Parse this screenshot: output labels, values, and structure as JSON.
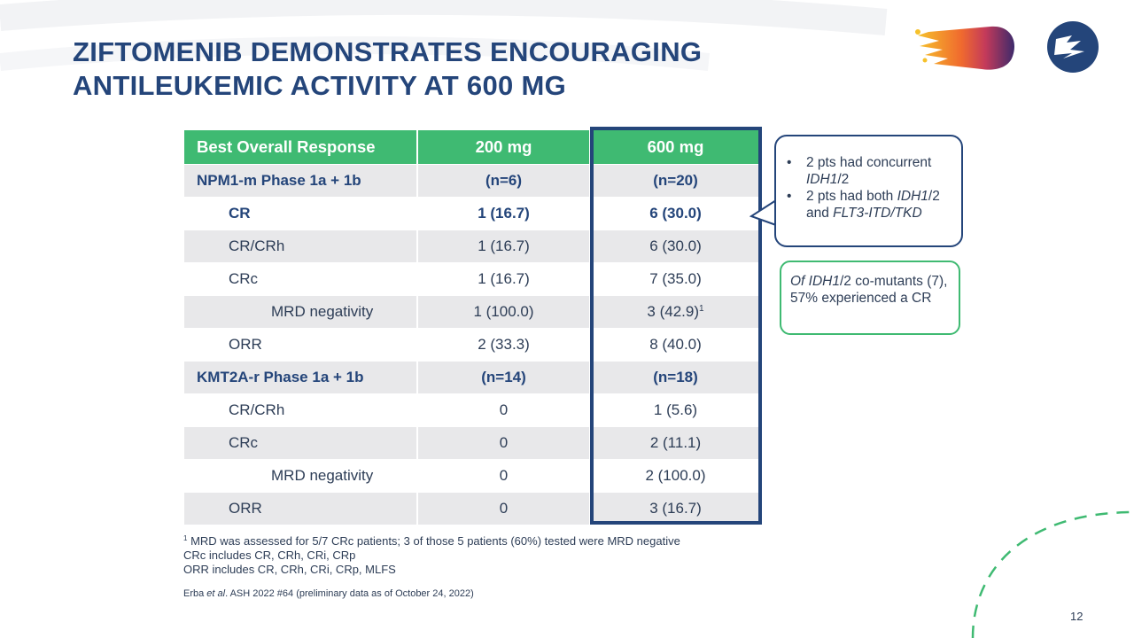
{
  "slide": {
    "title": "ZIFTOMENIB DEMONSTRATES ENCOURAGING ANTILEUKEMIC ACTIVITY AT 600 MG",
    "page_number": "12"
  },
  "table": {
    "headers": [
      "Best Overall Response",
      "200 mg",
      "600 mg"
    ],
    "rows": [
      {
        "label": "NPM1-m Phase 1a + 1b",
        "v200": "(n=6)",
        "v600": "(n=20)"
      },
      {
        "label": "CR",
        "v200": "1 (16.7)",
        "v600": "6 (30.0)"
      },
      {
        "label": "CR/CRh",
        "v200": "1 (16.7)",
        "v600": "6 (30.0)"
      },
      {
        "label": "CRc",
        "v200": "1 (16.7)",
        "v600": "7 (35.0)"
      },
      {
        "label": "MRD negativity",
        "v200": "1 (100.0)",
        "v600": "3 (42.9)",
        "v600_sup": "1"
      },
      {
        "label": "ORR",
        "v200": "2 (33.3)",
        "v600": "8 (40.0)"
      },
      {
        "label": "KMT2A-r Phase 1a + 1b",
        "v200": "(n=14)",
        "v600": "(n=18)"
      },
      {
        "label": "CR/CRh",
        "v200": "0",
        "v600": "1 (5.6)"
      },
      {
        "label": "CRc",
        "v200": "0",
        "v600": "2 (11.1)"
      },
      {
        "label": "MRD negativity",
        "v200": "0",
        "v600": "2 (100.0)"
      },
      {
        "label": "ORR",
        "v200": "0",
        "v600": "3 (16.7)"
      }
    ]
  },
  "callout_pts": {
    "bullet1_a": "2 pts had concurrent ",
    "bullet1_b": "IDH1",
    "bullet1_c": "/2",
    "bullet2_a": "2 pts had both ",
    "bullet2_b": "IDH1",
    "bullet2_c": "/2 and ",
    "bullet2_d": "FLT3-ITD/TKD"
  },
  "callout_cr": {
    "part_a": "Of ",
    "part_b": "IDH1",
    "part_c": "/2 co-mutants (7), 57% experienced a CR"
  },
  "footnotes": {
    "note1_sup": "1",
    "note1": " MRD was assessed for 5/7 CRc patients; 3 of those 5 patients (60%) tested were MRD negative",
    "note2": "CRc includes CR, CRh, CRi, CRp",
    "note3": "ORR includes CR, CRh, CRi, CRp, MLFS",
    "citation_a": "Erba ",
    "citation_b": "et al",
    "citation_c": ". ASH 2022 #64 (preliminary data as of October 24, 2022)"
  },
  "colors": {
    "navy": "#24457a",
    "green": "#3fba72",
    "row_shade": "#e8e8ea"
  }
}
